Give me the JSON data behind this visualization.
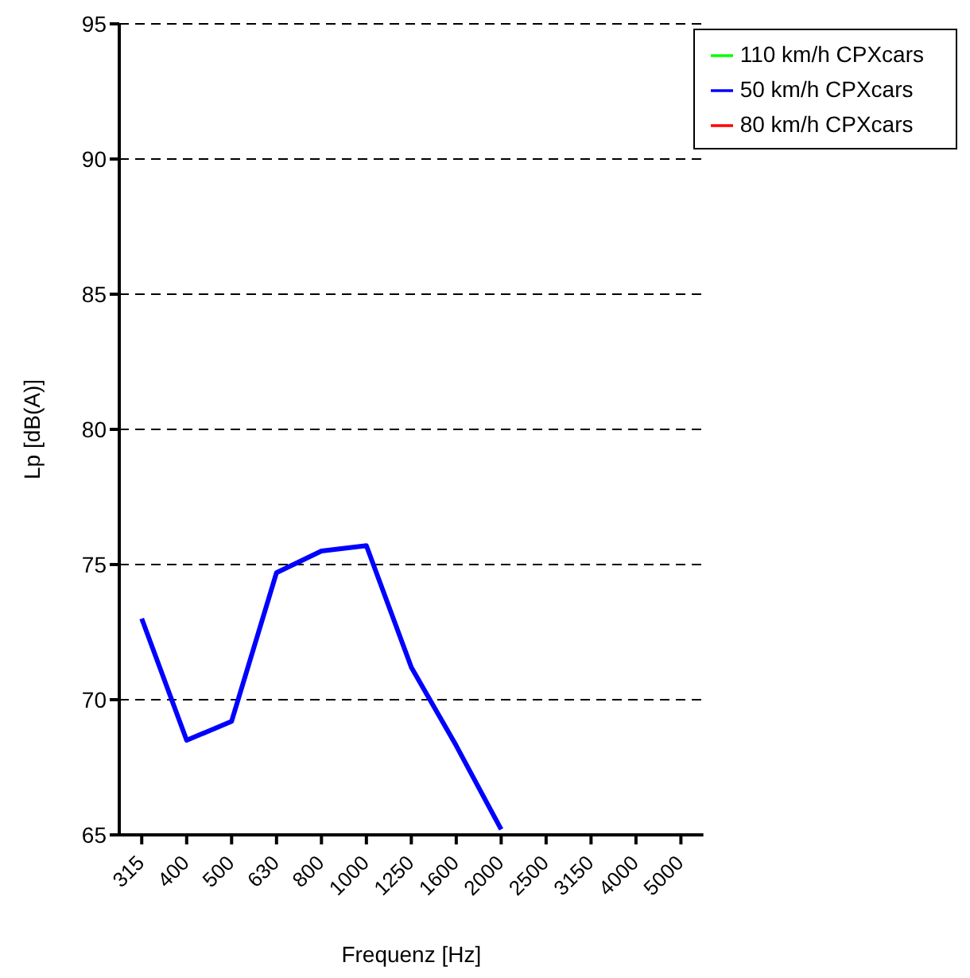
{
  "chart_data": {
    "type": "line",
    "xlabel": "Frequenz [Hz]",
    "ylabel": "Lp [dB(A)]",
    "categories": [
      "315",
      "400",
      "500",
      "630",
      "800",
      "1000",
      "1250",
      "1600",
      "2000",
      "2500",
      "3150",
      "4000",
      "5000"
    ],
    "series": [
      {
        "name": "50 km/h CPXcars",
        "color": "#0000ff",
        "values": [
          73.0,
          68.5,
          69.2,
          74.7,
          75.5,
          75.7,
          71.2,
          68.3,
          65.2,
          null,
          null,
          null,
          null
        ]
      },
      {
        "name": "80 km/h CPXcars",
        "color": "#ff0000",
        "values": [
          null,
          null,
          null,
          null,
          null,
          null,
          null,
          null,
          null,
          null,
          null,
          null,
          null
        ]
      },
      {
        "name": "110 km/h CPXcars",
        "color": "#00ff00",
        "values": [
          null,
          null,
          null,
          null,
          null,
          null,
          null,
          null,
          null,
          null,
          null,
          null,
          null
        ]
      }
    ],
    "ylim": [
      65,
      95
    ],
    "yticks": [
      65,
      70,
      75,
      80,
      85,
      90,
      95
    ],
    "grid": "y",
    "legend": "top right",
    "marker": "none",
    "line_style": "solid"
  }
}
